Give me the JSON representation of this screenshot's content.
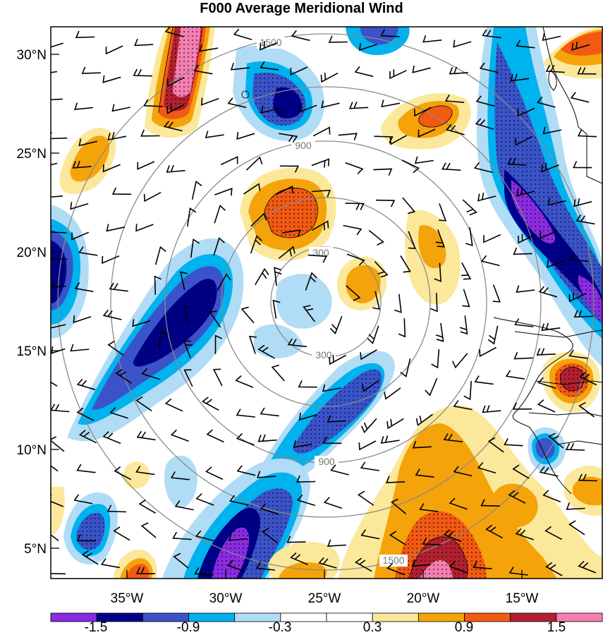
{
  "title": "F000 Average Meridional Wind",
  "map": {
    "lon_range": [
      -39,
      -11
    ],
    "lat_range": [
      3,
      31
    ],
    "lon_ticks": [
      "35°W",
      "30°W",
      "25°W",
      "20°W",
      "15°W"
    ],
    "lat_ticks": [
      "30°N",
      "25°N",
      "20°N",
      "15°N",
      "10°N",
      "5°N"
    ],
    "range_rings": [
      "300",
      "900",
      "1500"
    ]
  },
  "colorbar": {
    "labels": [
      "-1.5",
      "-0.9",
      "-0.3",
      "0.3",
      "0.9",
      "1.5"
    ],
    "colors": [
      "#8a2be2",
      "#00008b",
      "#3a53c9",
      "#00b2ee",
      "#b0dcf6",
      "#ffffff",
      "#ffffff",
      "#fbe89a",
      "#f5a30a",
      "#f25a13",
      "#b22030",
      "#f47fb0"
    ]
  }
}
